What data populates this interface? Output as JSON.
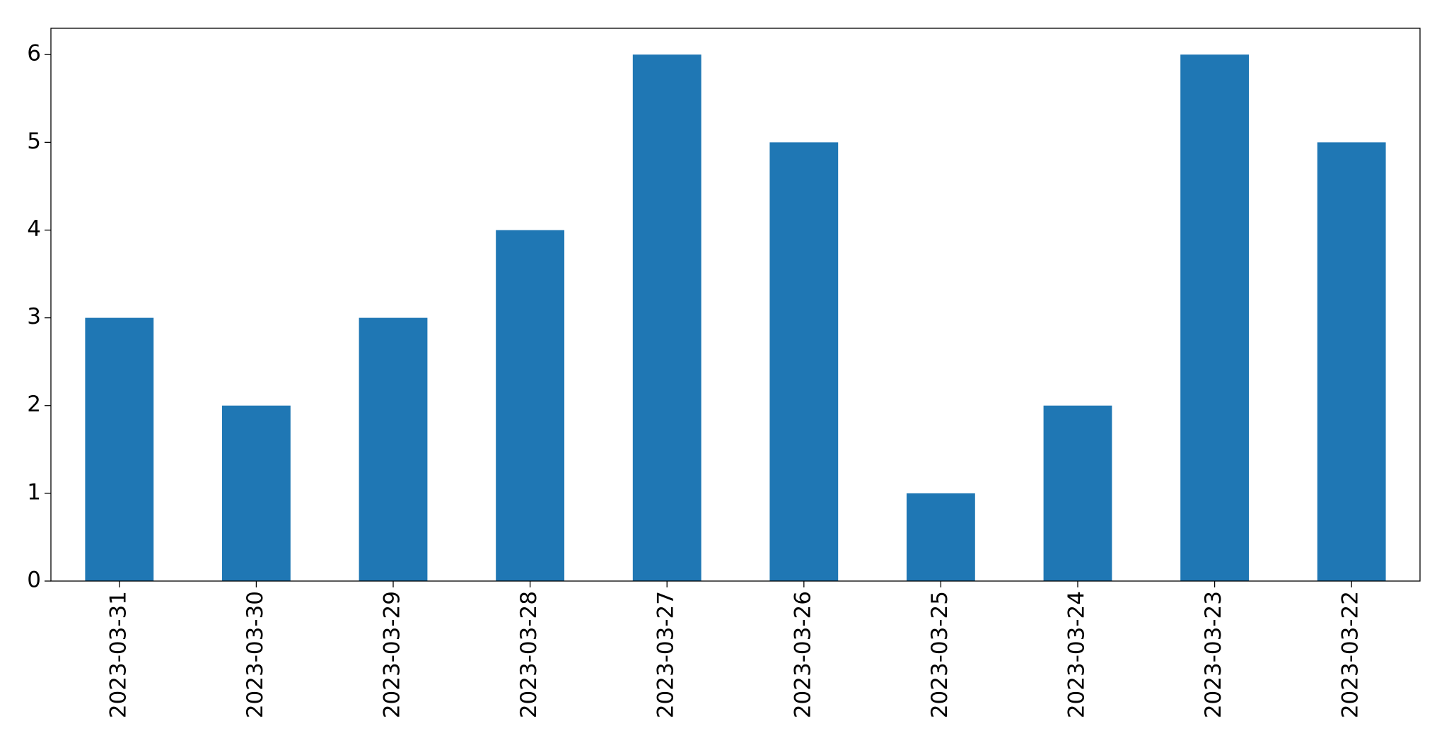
{
  "chart_data": {
    "type": "bar",
    "categories": [
      "2023-03-31",
      "2023-03-30",
      "2023-03-29",
      "2023-03-28",
      "2023-03-27",
      "2023-03-26",
      "2023-03-25",
      "2023-03-24",
      "2023-03-23",
      "2023-03-22"
    ],
    "values": [
      3,
      2,
      3,
      4,
      6,
      5,
      1,
      2,
      6,
      5
    ],
    "color": "#1f77b4",
    "ylim": [
      0,
      6.3
    ],
    "yticks": [
      0,
      1,
      2,
      3,
      4,
      5,
      6
    ],
    "grid": false
  }
}
